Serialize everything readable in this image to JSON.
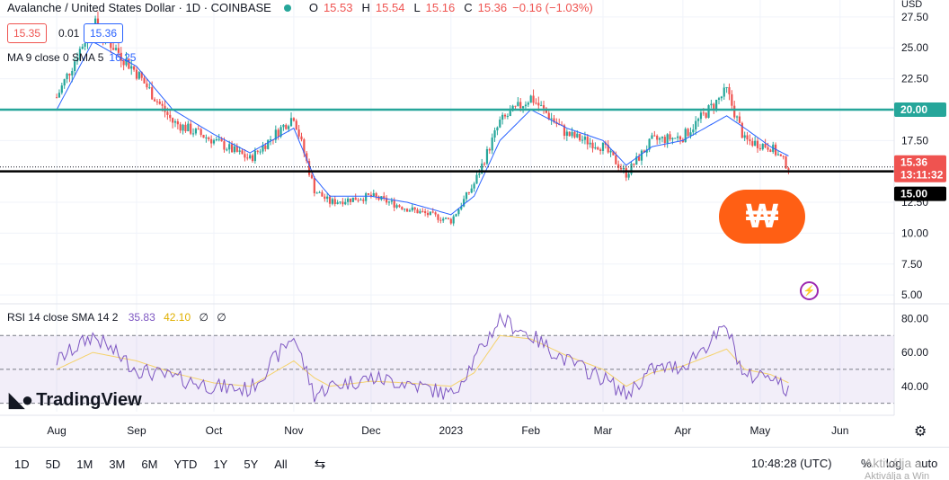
{
  "header": {
    "symbol": "Avalanche / United States Dollar · 1D · COINBASE",
    "o_label": "O",
    "o": "15.53",
    "h_label": "H",
    "h": "15.54",
    "l_label": "L",
    "l": "15.16",
    "c_label": "C",
    "c": "15.36",
    "change": "−0.16 (−1.03%)"
  },
  "price_boxes": {
    "bid": "15.35",
    "spread": "0.01",
    "ask": "15.36"
  },
  "ma_legend": {
    "label": "MA 9 close 0 SMA 5",
    "value": "16.25"
  },
  "rsi_legend": {
    "label": "RSI 14 close SMA 14 2",
    "rsi": "35.83",
    "sma": "42.10",
    "extra1": "∅",
    "extra2": "∅"
  },
  "price_axis": {
    "currency": "USD",
    "ticks": [
      "27.50",
      "25.00",
      "22.50",
      "20.00",
      "17.50",
      "15.00",
      "12.50",
      "10.00",
      "7.50",
      "5.00"
    ],
    "last_price": "15.36",
    "countdown": "13:11:32",
    "level_high": "20.00",
    "level_low": "15.00"
  },
  "rsi_axis": {
    "ticks": [
      "80.00",
      "60.00",
      "40.00"
    ]
  },
  "time_axis": {
    "labels": [
      "Aug",
      "Sep",
      "Oct",
      "Nov",
      "Dec",
      "2023",
      "Feb",
      "Mar",
      "Apr",
      "May",
      "Jun"
    ]
  },
  "branding": {
    "logo_text": "TradingView"
  },
  "toolbar": {
    "timeframes": [
      "1D",
      "5D",
      "1M",
      "3M",
      "6M",
      "YTD",
      "1Y",
      "5Y",
      "All"
    ],
    "clock": "10:48:28 (UTC)",
    "percent": "%",
    "log": "log",
    "auto": "auto"
  },
  "watermark": {
    "line1": "Aktiválja a",
    "line2": "Aktiválja a Win"
  },
  "colors": {
    "up": "#26a69a",
    "down": "#ef5350",
    "ma": "#2962ff",
    "rsi": "#7e57c2",
    "rsi_sma": "#f5d26b",
    "level_high": "#26a69a",
    "level_low": "#000000",
    "brand": "#ff5f14"
  },
  "chart_data": {
    "type": "candlestick",
    "x": [
      "2022-08-01",
      "2022-08-15",
      "2022-09-01",
      "2022-09-15",
      "2022-10-01",
      "2022-10-15",
      "2022-11-01",
      "2022-11-09",
      "2022-11-15",
      "2022-12-01",
      "2022-12-15",
      "2023-01-01",
      "2023-01-10",
      "2023-01-20",
      "2023-02-01",
      "2023-02-15",
      "2023-03-01",
      "2023-03-10",
      "2023-03-20",
      "2023-04-01",
      "2023-04-18",
      "2023-04-25",
      "2023-05-05",
      "2023-05-12"
    ],
    "close": [
      21.0,
      27.0,
      23.0,
      19.0,
      17.5,
      16.0,
      19.5,
      13.5,
      12.5,
      13.0,
      12.0,
      11.0,
      14.0,
      19.0,
      21.0,
      18.0,
      17.0,
      14.8,
      17.5,
      17.8,
      21.5,
      17.5,
      17.0,
      15.36
    ],
    "ma": [
      20.0,
      25.5,
      23.5,
      20.0,
      18.0,
      16.5,
      18.5,
      14.5,
      13.0,
      13.0,
      12.5,
      11.5,
      13.0,
      17.5,
      20.0,
      18.5,
      17.5,
      15.5,
      17.0,
      17.5,
      19.5,
      18.5,
      17.0,
      16.25
    ],
    "rsi": [
      55,
      70,
      50,
      45,
      40,
      38,
      70,
      35,
      40,
      45,
      42,
      35,
      55,
      80,
      70,
      55,
      45,
      35,
      50,
      52,
      75,
      45,
      48,
      35.83
    ],
    "rsi_sma": [
      50,
      60,
      55,
      48,
      42,
      40,
      55,
      45,
      40,
      43,
      42,
      40,
      48,
      70,
      68,
      58,
      50,
      40,
      48,
      52,
      62,
      50,
      47,
      42.1
    ],
    "hlines": [
      20.0,
      15.0
    ],
    "ylim": [
      4.5,
      28
    ],
    "rsi_ylim": [
      25,
      85
    ],
    "rsi_bands": [
      70,
      50,
      30
    ]
  }
}
